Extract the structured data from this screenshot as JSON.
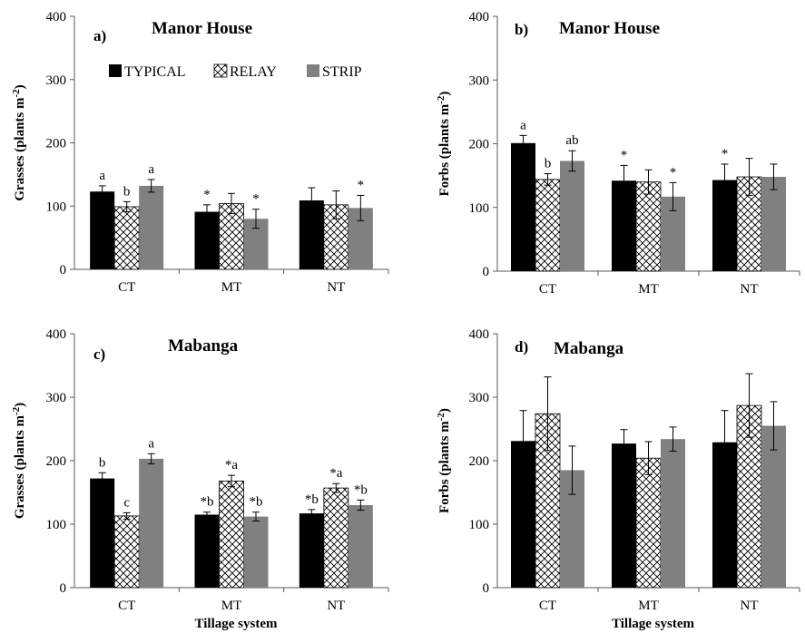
{
  "colors": {
    "typical": "#000000",
    "relay_pattern": "crosshatch",
    "strip": "#808080",
    "axis": "#595959"
  },
  "legend": {
    "items": [
      {
        "label": "TYPICAL",
        "series": "typical"
      },
      {
        "label": "RELAY",
        "series": "relay"
      },
      {
        "label": "STRIP",
        "series": "strip"
      }
    ]
  },
  "chart_data": [
    {
      "type": "bar",
      "panel": "a)",
      "title": "Manor House",
      "ylabel": "Grasses (plants m⁻²)",
      "xlabel": "",
      "ylim": [
        0,
        400
      ],
      "yticks": [
        0,
        100,
        200,
        300,
        400
      ],
      "categories": [
        "CT",
        "MT",
        "NT"
      ],
      "series": [
        {
          "name": "TYPICAL",
          "values": [
            123,
            91,
            109
          ],
          "errors": [
            9,
            11,
            20
          ],
          "labels": [
            "a",
            "*",
            ""
          ]
        },
        {
          "name": "RELAY",
          "values": [
            99,
            104,
            102
          ],
          "errors": [
            8,
            16,
            22
          ],
          "labels": [
            "b",
            "",
            ""
          ]
        },
        {
          "name": "STRIP",
          "values": [
            132,
            80,
            97
          ],
          "errors": [
            10,
            15,
            20
          ],
          "labels": [
            "a",
            "*",
            "*"
          ]
        }
      ]
    },
    {
      "type": "bar",
      "panel": "b)",
      "title": "Manor House",
      "ylabel": "Forbs (plants m⁻²)",
      "xlabel": "",
      "ylim": [
        0,
        400
      ],
      "yticks": [
        0,
        100,
        200,
        300,
        400
      ],
      "categories": [
        "CT",
        "MT",
        "NT"
      ],
      "series": [
        {
          "name": "TYPICAL",
          "values": [
            201,
            142,
            143
          ],
          "errors": [
            12,
            24,
            25
          ],
          "labels": [
            "a",
            "*",
            "*"
          ]
        },
        {
          "name": "RELAY",
          "values": [
            144,
            140,
            148
          ],
          "errors": [
            9,
            19,
            29
          ],
          "labels": [
            "b",
            "",
            ""
          ]
        },
        {
          "name": "STRIP",
          "values": [
            173,
            117,
            148
          ],
          "errors": [
            16,
            22,
            20
          ],
          "labels": [
            "ab",
            "*",
            ""
          ]
        }
      ]
    },
    {
      "type": "bar",
      "panel": "c)",
      "title": "Mabanga",
      "ylabel": "Grasses (plants m⁻²)",
      "xlabel": "Tillage system",
      "ylim": [
        0,
        400
      ],
      "yticks": [
        0,
        100,
        200,
        300,
        400
      ],
      "categories": [
        "CT",
        "MT",
        "NT"
      ],
      "series": [
        {
          "name": "TYPICAL",
          "values": [
            172,
            115,
            117
          ],
          "errors": [
            9,
            4,
            6
          ],
          "labels": [
            "b",
            "*b",
            "*b"
          ]
        },
        {
          "name": "RELAY",
          "values": [
            113,
            168,
            157
          ],
          "errors": [
            5,
            9,
            7
          ],
          "labels": [
            "c",
            "*a",
            "*a"
          ]
        },
        {
          "name": "STRIP",
          "values": [
            203,
            112,
            130
          ],
          "errors": [
            8,
            7,
            8
          ],
          "labels": [
            "a",
            "*b",
            "*b"
          ]
        }
      ]
    },
    {
      "type": "bar",
      "panel": "d)",
      "title": "Mabanga",
      "ylabel": "Forbs (plants m⁻²)",
      "xlabel": "Tillage system",
      "ylim": [
        0,
        400
      ],
      "yticks": [
        0,
        100,
        200,
        300,
        400
      ],
      "categories": [
        "CT",
        "MT",
        "NT"
      ],
      "series": [
        {
          "name": "TYPICAL",
          "values": [
            231,
            227,
            229
          ],
          "errors": [
            48,
            22,
            50
          ],
          "labels": [
            "",
            "",
            ""
          ]
        },
        {
          "name": "RELAY",
          "values": [
            274,
            204,
            287
          ],
          "errors": [
            58,
            26,
            50
          ],
          "labels": [
            "",
            "",
            ""
          ]
        },
        {
          "name": "STRIP",
          "values": [
            185,
            234,
            255
          ],
          "errors": [
            38,
            19,
            38
          ],
          "labels": [
            "",
            "",
            ""
          ]
        }
      ]
    }
  ]
}
